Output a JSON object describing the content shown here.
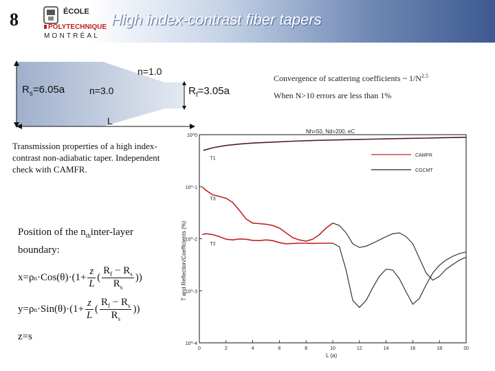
{
  "header": {
    "slide_number": "8",
    "title": "High index-contrast fiber tapers",
    "logo": {
      "line1": "ÉCOLE",
      "line2": "POLYTECHNIQUE",
      "line3": "MONTRÉAL"
    }
  },
  "taper": {
    "n_clad": "n=1.0",
    "n_core": "n=3.0",
    "rs_main": "R",
    "rs_sub": "s",
    "rs_value": "=6.05a",
    "rf_main": "R",
    "rf_sub": "f",
    "rf_value": "=3.05a",
    "length_label": "L"
  },
  "notes": {
    "convergence_prefix": "Convergence of scattering coefficients ~ 1/N",
    "convergence_exp": "2.5",
    "accuracy": "When N>10 errors are less than 1%"
  },
  "transmission_text": "Transmission properties of a high index-contrast non-adiabatic taper. Independent check with CAMFR.",
  "position": {
    "heading_pre": "Position of the n",
    "heading_sub": "th",
    "heading_post": "inter-layer",
    "heading_line2": "boundary:",
    "x_lhs": "x=",
    "y_lhs": "y=",
    "z_eq": "z=s",
    "rho": "ρ",
    "rho_sub": "n",
    "cos_fn": "·Cos(θ)·(1+",
    "sin_fn": "·Sin(θ)·(1+",
    "z": "z",
    "L": "L",
    "rf": "R",
    "rf_sub": "f",
    "minus": " − ",
    "rs": "R",
    "rs_sub": "s",
    "close": "))"
  },
  "chart_data": {
    "type": "line",
    "title": "Nh=50, Nd=200, eC",
    "ylabel": "T and Reflection/Coefficients (%)",
    "xlabel": "L (a)",
    "x_ticks": [
      "0",
      "2",
      "4",
      "6",
      "8",
      "10",
      "12",
      "14",
      "16",
      "18",
      "20"
    ],
    "y_ticks": [
      "10^0",
      "10^-1",
      "10^-2",
      "10^-3",
      "10^-4"
    ],
    "xlim": [
      0,
      20
    ],
    "ylim_log10": [
      -4,
      0
    ],
    "legend": [
      {
        "label": "CAMFR",
        "color": "#c02020"
      },
      {
        "label": "CGCMT",
        "color": "#222222"
      }
    ],
    "curve_labels": [
      "T1",
      "T3",
      "T2"
    ],
    "series": [
      {
        "name": "CAMFR",
        "color": "#c02020",
        "curves": [
          {
            "label": "T1",
            "x": [
              0.3,
              1,
              2,
              3,
              4,
              5,
              6,
              7,
              8,
              9,
              10,
              11,
              12,
              13,
              14,
              15,
              16,
              17,
              18,
              19,
              20
            ],
            "y": [
              0.5,
              0.56,
              0.62,
              0.66,
              0.69,
              0.71,
              0.73,
              0.75,
              0.765,
              0.78,
              0.79,
              0.8,
              0.81,
              0.82,
              0.83,
              0.84,
              0.85,
              0.86,
              0.87,
              0.88,
              0.89
            ]
          },
          {
            "label": "T3",
            "x": [
              0.2,
              0.5,
              1,
              1.5,
              2,
              2.5,
              3,
              3.5,
              4,
              4.5,
              5,
              5.5,
              6,
              6.5,
              7,
              7.5,
              8,
              8.5,
              9,
              9.5,
              10
            ],
            "y": [
              0.1,
              0.085,
              0.07,
              0.065,
              0.06,
              0.05,
              0.035,
              0.024,
              0.02,
              0.0195,
              0.019,
              0.018,
              0.016,
              0.013,
              0.0105,
              0.0095,
              0.009,
              0.0098,
              0.012,
              0.016,
              0.02
            ]
          },
          {
            "label": "T2",
            "x": [
              0.2,
              0.5,
              1,
              1.5,
              2,
              2.5,
              3,
              3.5,
              4,
              4.5,
              5,
              5.5,
              6,
              6.5,
              7,
              7.5,
              8,
              8.5,
              9,
              9.5,
              10
            ],
            "y": [
              0.012,
              0.0125,
              0.012,
              0.011,
              0.0098,
              0.0095,
              0.0099,
              0.0098,
              0.0093,
              0.0092,
              0.0095,
              0.0092,
              0.0084,
              0.008,
              0.0081,
              0.0082,
              0.0082,
              0.0081,
              0.0082,
              0.0082,
              0.0082
            ]
          }
        ]
      },
      {
        "name": "CGCMT",
        "color": "#222222",
        "curves": [
          {
            "label": "T1",
            "x": [
              0.3,
              1,
              2,
              3,
              4,
              5,
              6,
              7,
              8,
              9,
              10,
              11,
              12,
              13,
              14,
              15,
              16,
              17,
              18,
              19,
              20
            ],
            "y": [
              0.5,
              0.56,
              0.62,
              0.66,
              0.69,
              0.71,
              0.73,
              0.75,
              0.765,
              0.78,
              0.79,
              0.8,
              0.81,
              0.82,
              0.83,
              0.84,
              0.85,
              0.86,
              0.87,
              0.88,
              0.89
            ]
          },
          {
            "label": "T3",
            "x": [
              10,
              10.5,
              11,
              11.5,
              12,
              12.5,
              13,
              13.5,
              14,
              14.5,
              15,
              15.5,
              16,
              16.5,
              17,
              17.5,
              18,
              18.5,
              19,
              19.5,
              20
            ],
            "y": [
              0.02,
              0.018,
              0.013,
              0.008,
              0.0068,
              0.0072,
              0.0082,
              0.0095,
              0.011,
              0.0125,
              0.013,
              0.011,
              0.008,
              0.0042,
              0.0022,
              0.0016,
              0.0019,
              0.0026,
              0.0032,
              0.0039,
              0.0044
            ]
          },
          {
            "label": "T2",
            "x": [
              10,
              10.5,
              11,
              11.5,
              12,
              12.5,
              13,
              13.5,
              14,
              14.5,
              15,
              15.5,
              16,
              16.5,
              17,
              17.5,
              18,
              18.5,
              19,
              19.5,
              20
            ],
            "y": [
              0.0082,
              0.007,
              0.0025,
              0.00065,
              0.00048,
              0.00065,
              0.00115,
              0.0019,
              0.0026,
              0.0025,
              0.0017,
              0.00095,
              0.00055,
              0.00072,
              0.0013,
              0.0022,
              0.0031,
              0.0039,
              0.0046,
              0.0052,
              0.0056
            ]
          }
        ]
      }
    ]
  }
}
